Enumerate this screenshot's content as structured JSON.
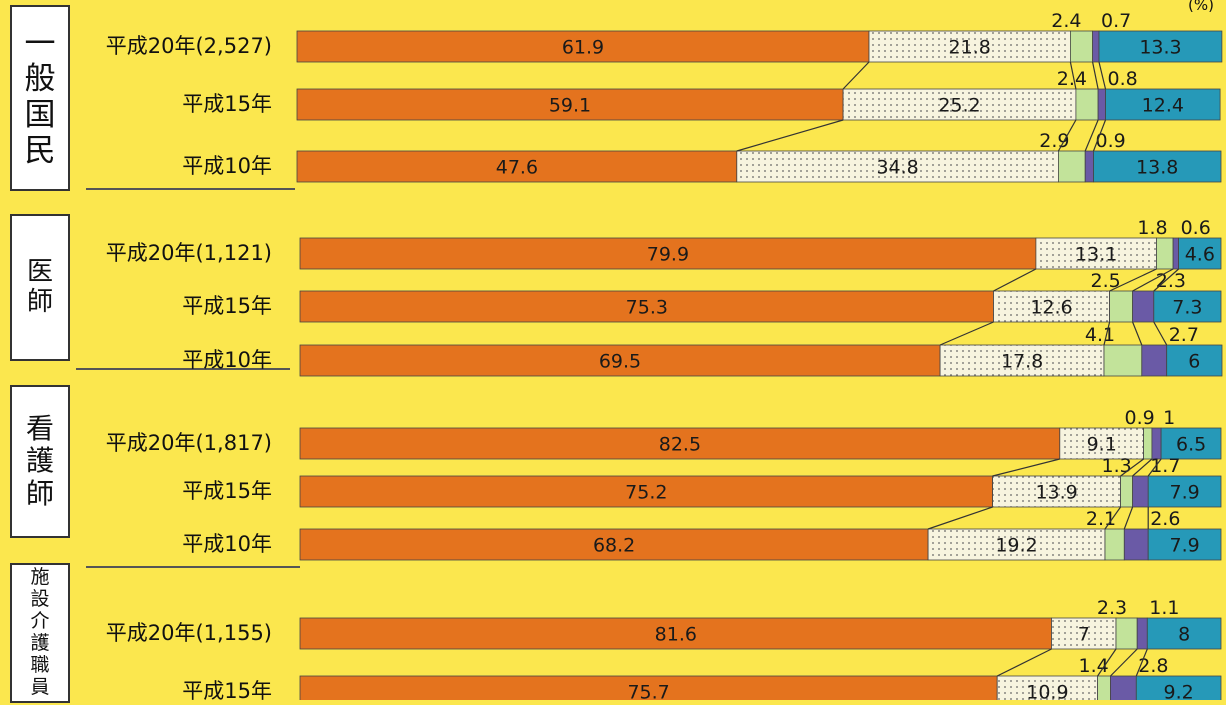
{
  "unit_label": "(%)",
  "colors": {
    "seg1": "#e4731e",
    "seg2": "#f7f4df",
    "seg3": "#c2e39a",
    "seg4": "#6a5aa6",
    "seg5": "#2699b8"
  },
  "chart_data": {
    "type": "bar",
    "orientation": "horizontal",
    "stacked": true,
    "xlim": [
      0,
      100
    ],
    "groups": [
      {
        "label": "一般国民",
        "rows": [
          {
            "label": "平成20年(2,527)",
            "values": [
              61.9,
              21.8,
              2.4,
              0.7,
              13.3
            ]
          },
          {
            "label": "平成15年",
            "values": [
              59.1,
              25.2,
              2.4,
              0.8,
              12.4
            ]
          },
          {
            "label": "平成10年",
            "values": [
              47.6,
              34.8,
              2.9,
              0.9,
              13.8
            ]
          }
        ]
      },
      {
        "label": "医師",
        "rows": [
          {
            "label": "平成20年(1,121)",
            "values": [
              79.9,
              13.1,
              1.8,
              0.6,
              4.6
            ]
          },
          {
            "label": "平成15年",
            "values": [
              75.3,
              12.6,
              2.5,
              2.3,
              7.3
            ]
          },
          {
            "label": "平成10年",
            "values": [
              69.5,
              17.8,
              4.1,
              2.7,
              6
            ]
          }
        ]
      },
      {
        "label": "看護師",
        "rows": [
          {
            "label": "平成20年(1,817)",
            "values": [
              82.5,
              9.1,
              0.9,
              1,
              6.5
            ]
          },
          {
            "label": "平成15年",
            "values": [
              75.2,
              13.9,
              1.3,
              1.7,
              7.9
            ]
          },
          {
            "label": "平成10年",
            "values": [
              68.2,
              19.2,
              2.1,
              2.6,
              7.9
            ]
          }
        ]
      },
      {
        "label": "施設介護職員",
        "rows": [
          {
            "label": "平成20年(1,155)",
            "values": [
              81.6,
              7,
              2.3,
              1.1,
              8
            ]
          },
          {
            "label": "平成15年",
            "values": [
              75.7,
              10.9,
              1.4,
              2.8,
              9.2
            ]
          }
        ]
      }
    ]
  }
}
